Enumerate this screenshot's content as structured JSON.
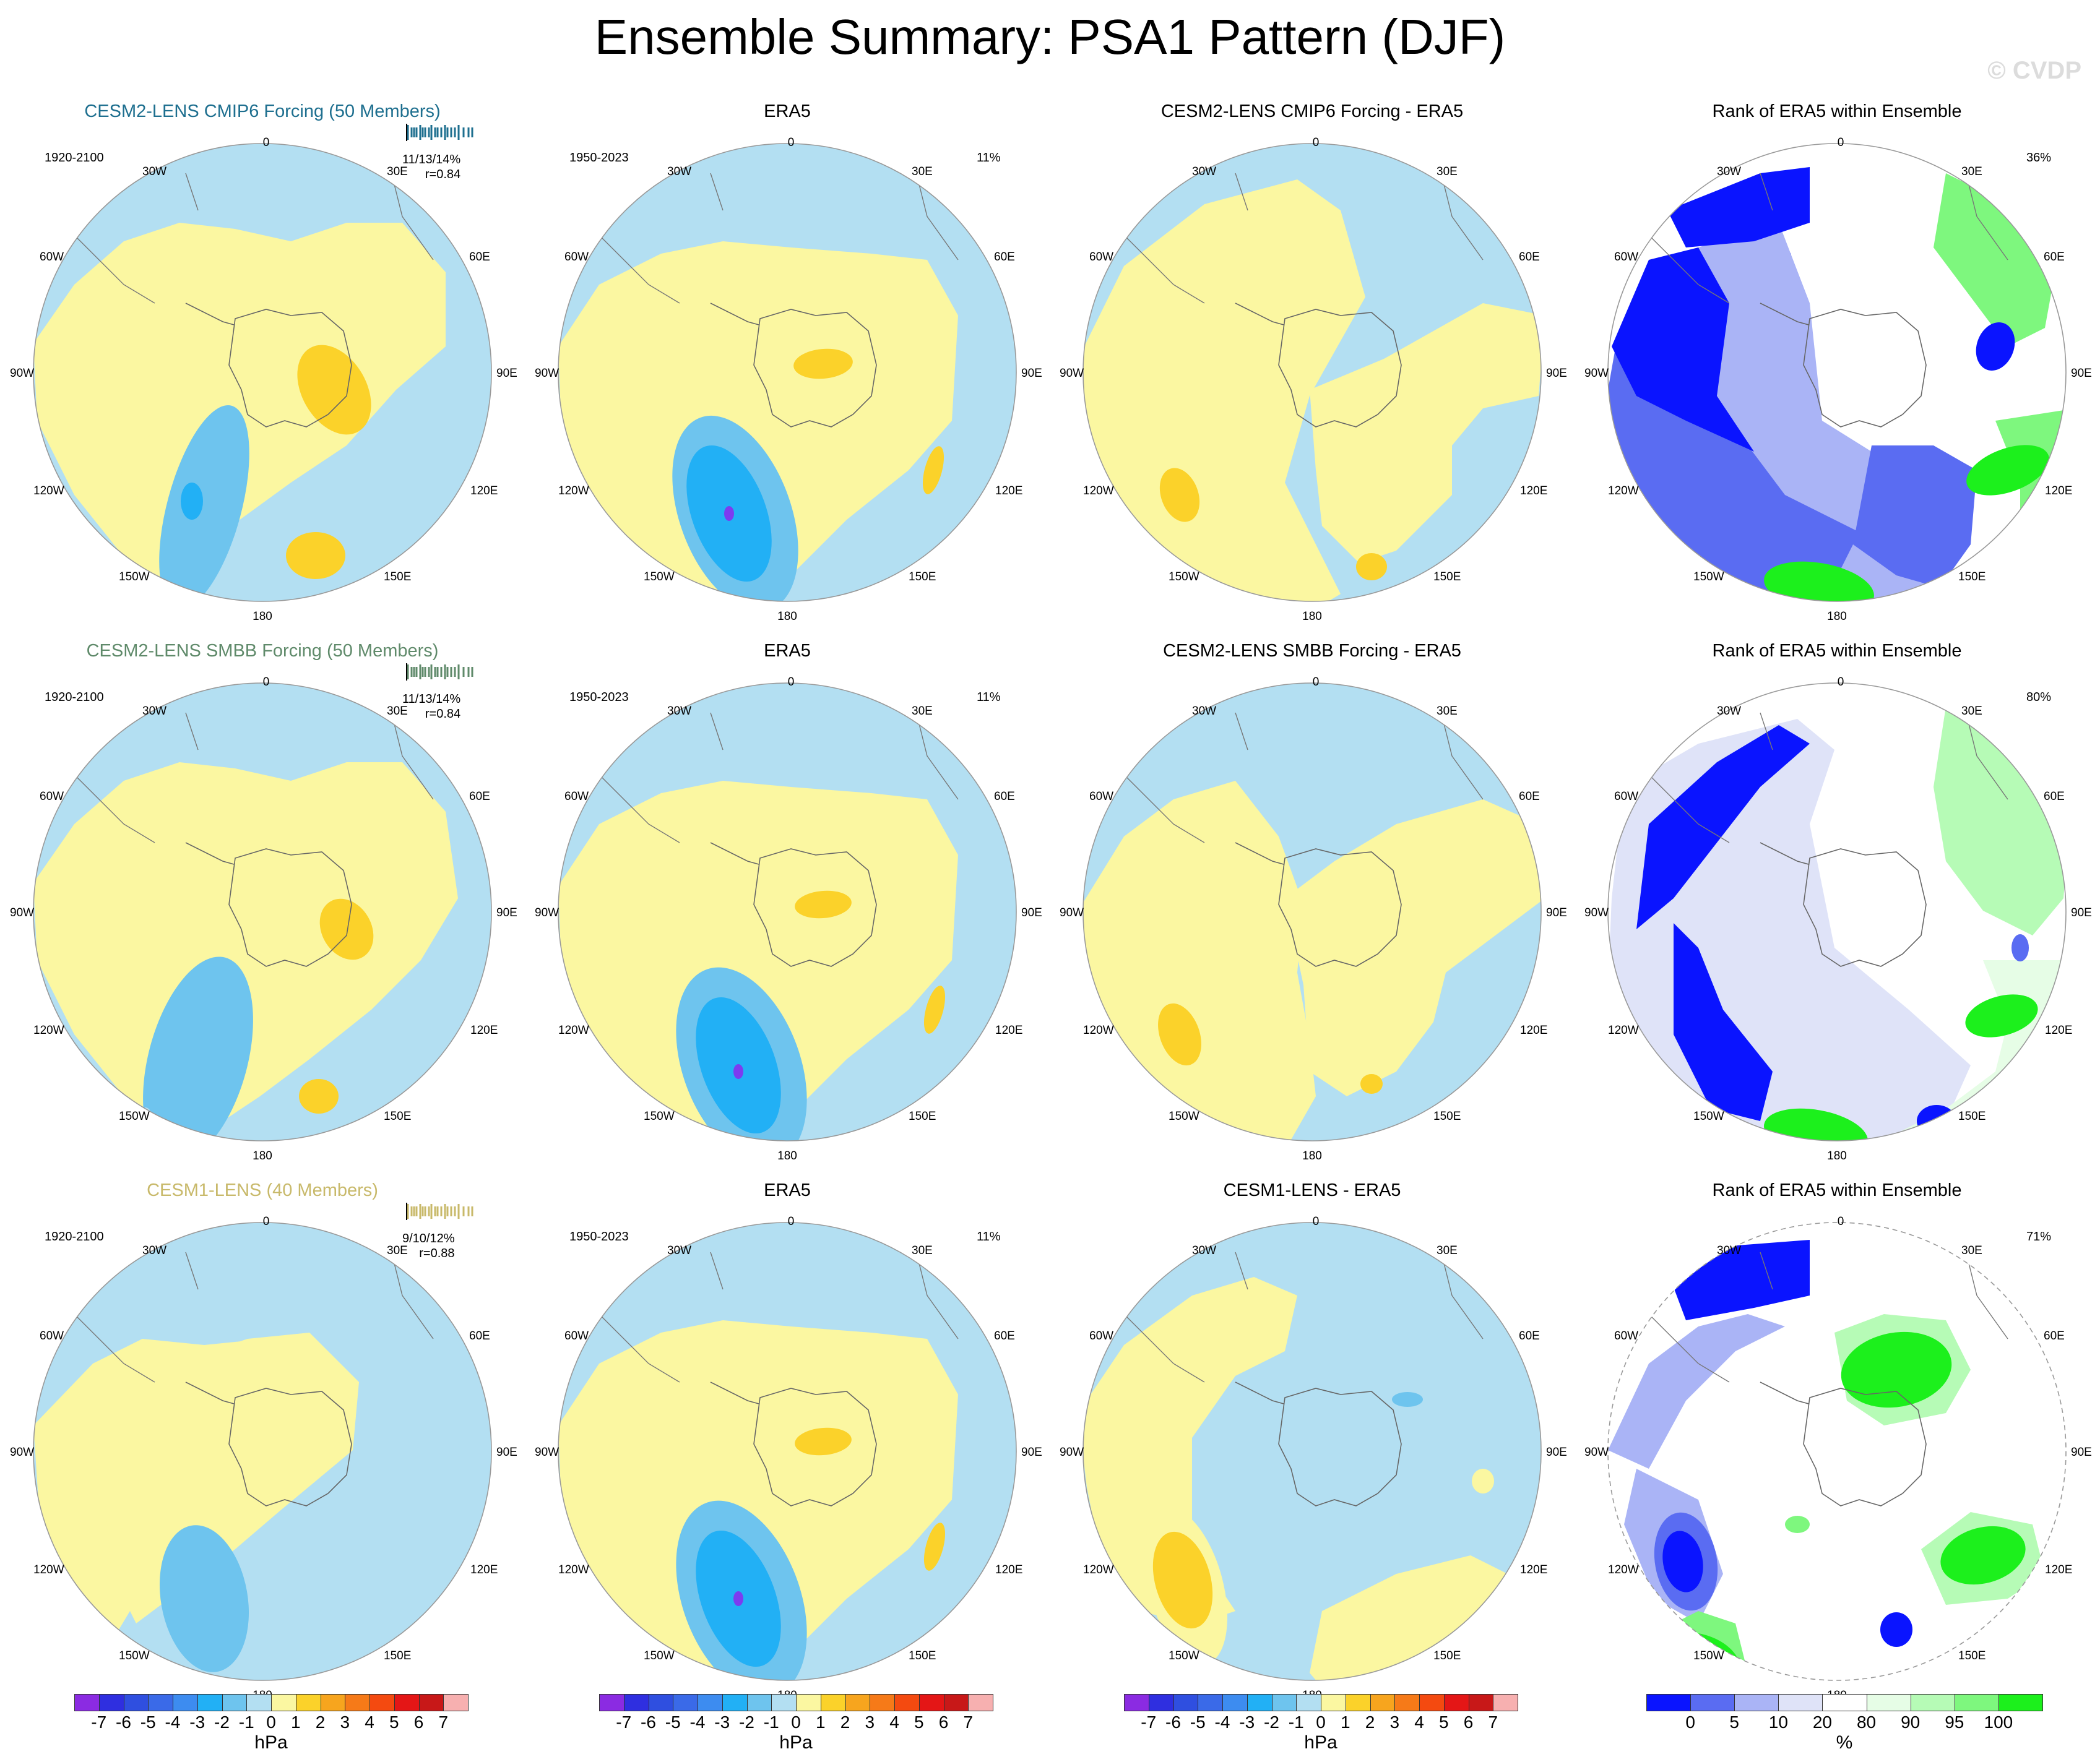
{
  "title": "Ensemble Summary: PSA1 Pattern (DJF)",
  "watermark": "© CVDP",
  "map_labels": {
    "top": "0",
    "n30w": "30W",
    "n30e": "30E",
    "w60": "60W",
    "e60": "60E",
    "w90": "90W",
    "e90": "90E",
    "w120": "120W",
    "e120": "120E",
    "w150": "150W",
    "e150": "150E",
    "bottom": "180"
  },
  "rows": [
    {
      "ensemble": {
        "title": "CESM2-LENS CMIP6 Forcing (50 Members)",
        "color": "#1e6f8f",
        "period": "1920-2100",
        "stats": "11/13/14%",
        "corr": "r=0.84"
      },
      "era5": {
        "title": "ERA5",
        "period": "1950-2023",
        "pct": "11%"
      },
      "diff": {
        "title": "CESM2-LENS CMIP6 Forcing - ERA5"
      },
      "rank": {
        "title": "Rank of ERA5 within Ensemble",
        "pct": "36%"
      }
    },
    {
      "ensemble": {
        "title": "CESM2-LENS SMBB Forcing (50 Members)",
        "color": "#5f8a6a",
        "period": "1920-2100",
        "stats": "11/13/14%",
        "corr": "r=0.84"
      },
      "era5": {
        "title": "ERA5",
        "period": "1950-2023",
        "pct": "11%"
      },
      "diff": {
        "title": "CESM2-LENS SMBB Forcing - ERA5"
      },
      "rank": {
        "title": "Rank of ERA5 within Ensemble",
        "pct": "80%"
      }
    },
    {
      "ensemble": {
        "title": "CESM1-LENS (40 Members)",
        "color": "#c8b96a",
        "period": "1920-2100",
        "stats": "9/10/12%",
        "corr": "r=0.88"
      },
      "era5": {
        "title": "ERA5",
        "period": "1950-2023",
        "pct": "11%"
      },
      "diff": {
        "title": "CESM1-LENS - ERA5"
      },
      "rank": {
        "title": "Rank of ERA5 within Ensemble",
        "pct": "71%"
      }
    }
  ],
  "colorbar_hpa": {
    "unit": "hPa",
    "ticks": [
      "-7",
      "-6",
      "-5",
      "-4",
      "-3",
      "-2",
      "-1",
      "0",
      "1",
      "2",
      "3",
      "4",
      "5",
      "6",
      "7"
    ],
    "colors": [
      "#8b2be2",
      "#2f2fe0",
      "#2f4fe0",
      "#3a6ae8",
      "#3d8cf0",
      "#22b0f5",
      "#6ec4ee",
      "#b3dff2",
      "#fbf7a1",
      "#fbd22a",
      "#f7a51e",
      "#f67a18",
      "#f44a10",
      "#e41616",
      "#c81818",
      "#f7b0b0"
    ]
  },
  "colorbar_pct": {
    "unit": "%",
    "ticks": [
      "0",
      "5",
      "10",
      "20",
      "80",
      "90",
      "95",
      "100"
    ],
    "colors": [
      "#0a14ff",
      "#5a6cf2",
      "#aab4f6",
      "#dfe3f8",
      "#ffffff",
      "#e6fde6",
      "#b6fbb6",
      "#7ef77e",
      "#1cf01c"
    ]
  }
}
